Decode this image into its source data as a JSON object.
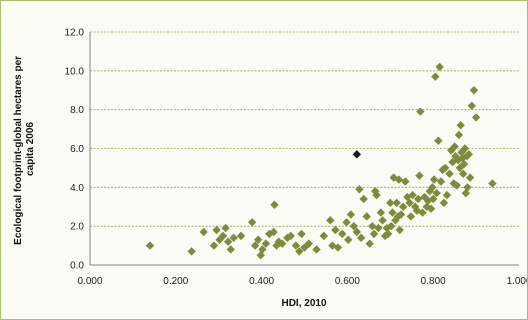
{
  "chart_data": {
    "type": "scatter",
    "title": "",
    "xlabel": "HDI, 2010",
    "ylabel_lines": [
      "Ecological footprint-global hectares per",
      "capita 2006"
    ],
    "xlim": [
      0,
      1
    ],
    "ylim": [
      0,
      12
    ],
    "x_ticks": [
      "0.000",
      "0.200",
      "0.400",
      "0.600",
      "0.800",
      "1.000"
    ],
    "y_ticks": [
      "0.0",
      "2.0",
      "4.0",
      "6.0",
      "8.0",
      "10.0",
      "12.0"
    ],
    "grid": {
      "horizontal": true,
      "vertical": false
    },
    "legend": "none",
    "colors": {
      "points": "#7b8c3c",
      "highlight": "#1a1a1a",
      "grid": "#8ea84a",
      "axis": "#808080",
      "border": "#a9c06a"
    },
    "series": [
      {
        "points": [
          [
            0.14,
            1.0
          ],
          [
            0.237,
            0.7
          ],
          [
            0.265,
            1.7
          ],
          [
            0.289,
            1.0
          ],
          [
            0.295,
            1.8
          ],
          [
            0.302,
            1.3
          ],
          [
            0.31,
            1.5
          ],
          [
            0.316,
            1.9
          ],
          [
            0.322,
            1.2
          ],
          [
            0.328,
            0.8
          ],
          [
            0.335,
            1.4
          ],
          [
            0.352,
            1.5
          ],
          [
            0.378,
            2.2
          ],
          [
            0.385,
            1.0
          ],
          [
            0.392,
            1.3
          ],
          [
            0.398,
            0.5
          ],
          [
            0.402,
            0.8
          ],
          [
            0.41,
            1.1
          ],
          [
            0.418,
            1.6
          ],
          [
            0.428,
            1.7
          ],
          [
            0.43,
            3.1
          ],
          [
            0.435,
            1.0
          ],
          [
            0.44,
            1.2
          ],
          [
            0.448,
            1.1
          ],
          [
            0.46,
            1.4
          ],
          [
            0.468,
            1.5
          ],
          [
            0.48,
            1.0
          ],
          [
            0.488,
            0.7
          ],
          [
            0.493,
            1.6
          ],
          [
            0.5,
            0.9
          ],
          [
            0.51,
            1.1
          ],
          [
            0.528,
            0.8
          ],
          [
            0.545,
            1.5
          ],
          [
            0.56,
            2.3
          ],
          [
            0.565,
            1.0
          ],
          [
            0.572,
            1.8
          ],
          [
            0.578,
            0.9
          ],
          [
            0.588,
            1.6
          ],
          [
            0.598,
            2.2
          ],
          [
            0.602,
            1.3
          ],
          [
            0.608,
            2.6
          ],
          [
            0.615,
            2.0
          ],
          [
            0.622,
            1.7
          ],
          [
            0.628,
            3.9
          ],
          [
            0.632,
            1.4
          ],
          [
            0.638,
            3.4
          ],
          [
            0.645,
            2.5
          ],
          [
            0.652,
            1.1
          ],
          [
            0.658,
            2.0
          ],
          [
            0.662,
            1.6
          ],
          [
            0.665,
            3.8
          ],
          [
            0.668,
            3.6
          ],
          [
            0.672,
            1.9
          ],
          [
            0.678,
            2.7
          ],
          [
            0.682,
            2.3
          ],
          [
            0.688,
            1.5
          ],
          [
            0.692,
            1.9
          ],
          [
            0.695,
            1.6
          ],
          [
            0.7,
            3.2
          ],
          [
            0.702,
            2.0
          ],
          [
            0.705,
            2.7
          ],
          [
            0.708,
            4.5
          ],
          [
            0.712,
            2.3
          ],
          [
            0.715,
            3.2
          ],
          [
            0.718,
            2.5
          ],
          [
            0.72,
            4.4
          ],
          [
            0.722,
            1.8
          ],
          [
            0.725,
            2.6
          ],
          [
            0.73,
            3.0
          ],
          [
            0.735,
            4.3
          ],
          [
            0.74,
            3.5
          ],
          [
            0.745,
            3.2
          ],
          [
            0.748,
            2.5
          ],
          [
            0.752,
            3.6
          ],
          [
            0.758,
            3.0
          ],
          [
            0.762,
            2.8
          ],
          [
            0.765,
            3.4
          ],
          [
            0.768,
            4.6
          ],
          [
            0.77,
            7.9
          ],
          [
            0.775,
            2.7
          ],
          [
            0.78,
            3.5
          ],
          [
            0.785,
            3.0
          ],
          [
            0.788,
            3.3
          ],
          [
            0.792,
            3.8
          ],
          [
            0.795,
            2.9
          ],
          [
            0.798,
            4.0
          ],
          [
            0.8,
            3.4
          ],
          [
            0.802,
            4.4
          ],
          [
            0.805,
            9.7
          ],
          [
            0.808,
            3.7
          ],
          [
            0.812,
            6.4
          ],
          [
            0.815,
            10.2
          ],
          [
            0.818,
            4.3
          ],
          [
            0.822,
            4.9
          ],
          [
            0.825,
            3.2
          ],
          [
            0.828,
            5.0
          ],
          [
            0.832,
            3.6
          ],
          [
            0.838,
            4.7
          ],
          [
            0.842,
            5.9
          ],
          [
            0.845,
            5.3
          ],
          [
            0.848,
            4.2
          ],
          [
            0.85,
            6.1
          ],
          [
            0.852,
            5.6
          ],
          [
            0.855,
            4.1
          ],
          [
            0.858,
            5.4
          ],
          [
            0.86,
            6.7
          ],
          [
            0.862,
            5.0
          ],
          [
            0.864,
            7.2
          ],
          [
            0.866,
            5.8
          ],
          [
            0.868,
            5.5
          ],
          [
            0.87,
            4.7
          ],
          [
            0.872,
            5.2
          ],
          [
            0.874,
            6.0
          ],
          [
            0.876,
            3.7
          ],
          [
            0.878,
            5.6
          ],
          [
            0.88,
            4.0
          ],
          [
            0.883,
            5.7
          ],
          [
            0.886,
            4.5
          ],
          [
            0.89,
            8.2
          ],
          [
            0.895,
            9.0
          ],
          [
            0.9,
            7.6
          ],
          [
            0.938,
            4.2
          ]
        ]
      },
      {
        "points": [
          [
            0.622,
            5.7
          ]
        ],
        "highlight": true
      }
    ]
  }
}
